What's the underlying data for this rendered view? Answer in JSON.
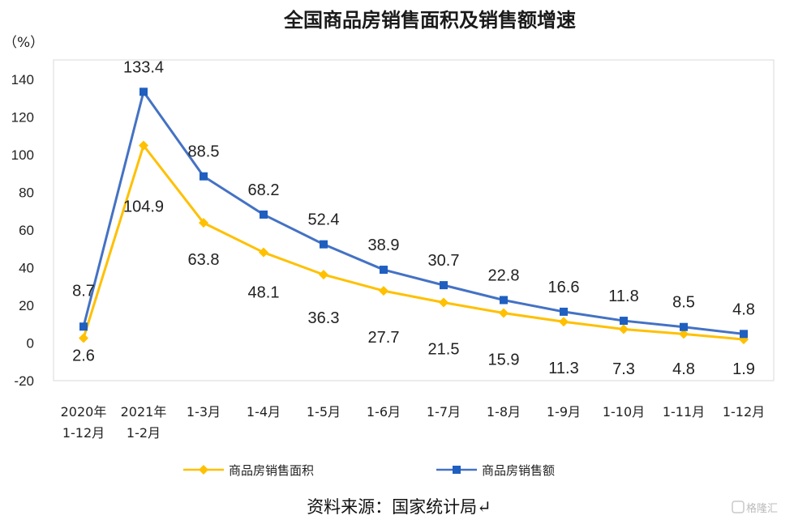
{
  "chart_data": {
    "type": "line",
    "title": "全国商品房销售面积及销售额增速",
    "unit_label": "（%）",
    "categories": [
      [
        "2020年",
        "1-12月"
      ],
      [
        "2021年",
        "1-2月"
      ],
      [
        "1-3月"
      ],
      [
        "1-4月"
      ],
      [
        "1-5月"
      ],
      [
        "1-6月"
      ],
      [
        "1-7月"
      ],
      [
        "1-8月"
      ],
      [
        "1-9月"
      ],
      [
        "1-10月"
      ],
      [
        "1-11月"
      ],
      [
        "1-12月"
      ]
    ],
    "series": [
      {
        "name": "商品房销售面积",
        "color": "#FFC000",
        "marker": "diamond",
        "values": [
          2.6,
          104.9,
          63.8,
          48.1,
          36.3,
          27.7,
          21.5,
          15.9,
          11.3,
          7.3,
          4.8,
          1.9
        ],
        "labels": [
          "2.6",
          "104.9",
          "63.8",
          "48.1",
          "36.3",
          "27.7",
          "21.5",
          "15.9",
          "11.3",
          "7.3",
          "4.8",
          "1.9"
        ]
      },
      {
        "name": "商品房销售额",
        "color": "#4472C4",
        "marker_color": "#1F5FBF",
        "marker": "square",
        "values": [
          8.7,
          133.4,
          88.5,
          68.2,
          52.4,
          38.9,
          30.7,
          22.8,
          16.6,
          11.8,
          8.5,
          4.8
        ],
        "labels": [
          "8.7",
          "133.4",
          "88.5",
          "68.2",
          "52.4",
          "38.9",
          "30.7",
          "22.8",
          "16.6",
          "11.8",
          "8.5",
          "4.8"
        ]
      }
    ],
    "ylim": [
      -20,
      140
    ],
    "yticks": [
      "-20",
      "0",
      "20",
      "40",
      "60",
      "80",
      "100",
      "120",
      "140"
    ],
    "grid": false,
    "legend_position": "bottom"
  },
  "source_text": "资料来源：国家统计局↵",
  "watermark_text": "格隆汇"
}
